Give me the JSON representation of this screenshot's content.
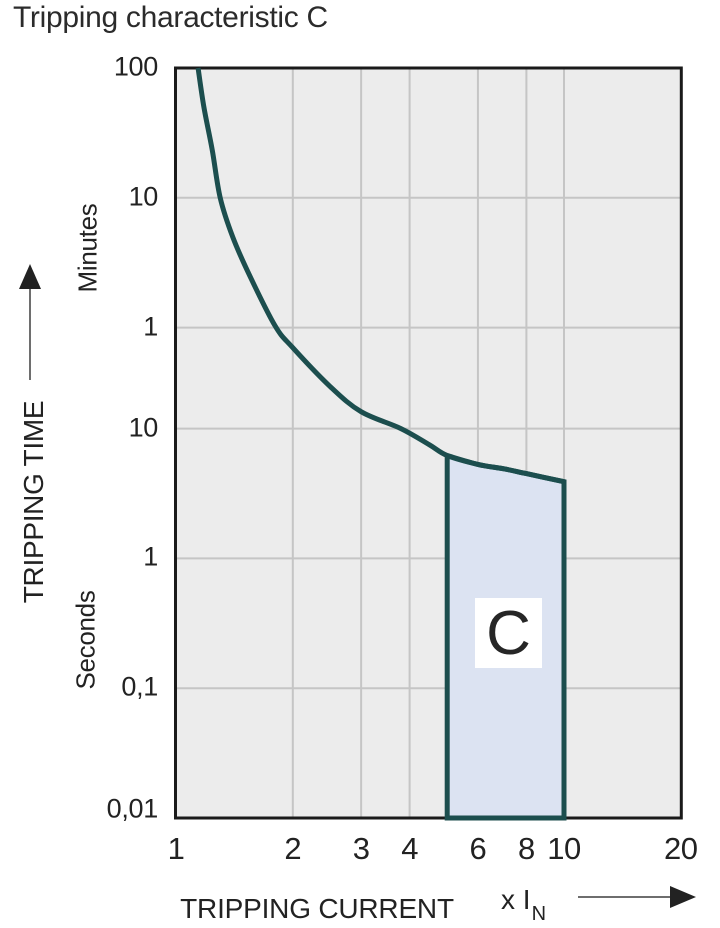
{
  "title": "Tripping characteristic C",
  "colors": {
    "curve": "#1c4e4e",
    "region_fill": "#dce3f2",
    "region_label_bg": "#ffffff",
    "plot_background": "#ececec",
    "gridline": "#c5c5c5",
    "border": "#1a1a1a",
    "text": "#222222",
    "arrow_line": "#6e6e6e",
    "arrow_head": "#222222"
  },
  "chart_data": {
    "type": "line",
    "title": "Tripping characteristic C",
    "x_axis": {
      "label": "TRIPPING CURRENT",
      "unit_prefix": "x I",
      "unit_sub": "N",
      "scale": "log",
      "min": 1,
      "max": 20,
      "ticks": [
        {
          "value": 1,
          "label": "1"
        },
        {
          "value": 2,
          "label": "2"
        },
        {
          "value": 3,
          "label": "3"
        },
        {
          "value": 4,
          "label": "4"
        },
        {
          "value": 6,
          "label": "6"
        },
        {
          "value": 8,
          "label": "8"
        },
        {
          "value": 10,
          "label": "10"
        },
        {
          "value": 20,
          "label": "20"
        }
      ],
      "gridlines": [
        2,
        3,
        4,
        6,
        8,
        10
      ]
    },
    "y_axis": {
      "label": "TRIPPING TIME",
      "scale": "log",
      "min_seconds": 0.01,
      "max_seconds": 6000,
      "unit_groups": [
        {
          "label": "Minutes"
        },
        {
          "label": "Seconds"
        }
      ],
      "ticks": [
        {
          "seconds": 6000,
          "label": "100",
          "unit": "minutes"
        },
        {
          "seconds": 600,
          "label": "10",
          "unit": "minutes"
        },
        {
          "seconds": 60,
          "label": "1",
          "unit": "minutes"
        },
        {
          "seconds": 10,
          "label": "10",
          "unit": "seconds"
        },
        {
          "seconds": 1,
          "label": "1",
          "unit": "seconds"
        },
        {
          "seconds": 0.1,
          "label": "0,1",
          "unit": "seconds"
        },
        {
          "seconds": 0.01,
          "label": "0,01",
          "unit": "seconds"
        }
      ],
      "gridlines_seconds": [
        600,
        60,
        10,
        1,
        0.1
      ]
    },
    "series": [
      {
        "name": "C tripping curve",
        "points_current_vs_seconds": [
          [
            1.14,
            6000
          ],
          [
            1.18,
            3000
          ],
          [
            1.24,
            1400
          ],
          [
            1.3,
            600
          ],
          [
            1.4,
            300
          ],
          [
            1.55,
            150
          ],
          [
            1.8,
            62
          ],
          [
            2.0,
            42
          ],
          [
            2.5,
            21
          ],
          [
            3.0,
            13.5
          ],
          [
            3.8,
            10
          ],
          [
            4.5,
            7.5
          ],
          [
            5.0,
            6.2
          ],
          [
            6.0,
            5.3
          ],
          [
            7.0,
            4.9
          ],
          [
            8.0,
            4.5
          ],
          [
            10.0,
            3.9
          ]
        ]
      }
    ],
    "region": {
      "label": "C",
      "x_from": 5,
      "x_to": 10,
      "top": "curve",
      "top_seconds_at_x_from": 6.2,
      "top_seconds_at_x_to": 3.9,
      "bottom_seconds": 0.01
    }
  }
}
